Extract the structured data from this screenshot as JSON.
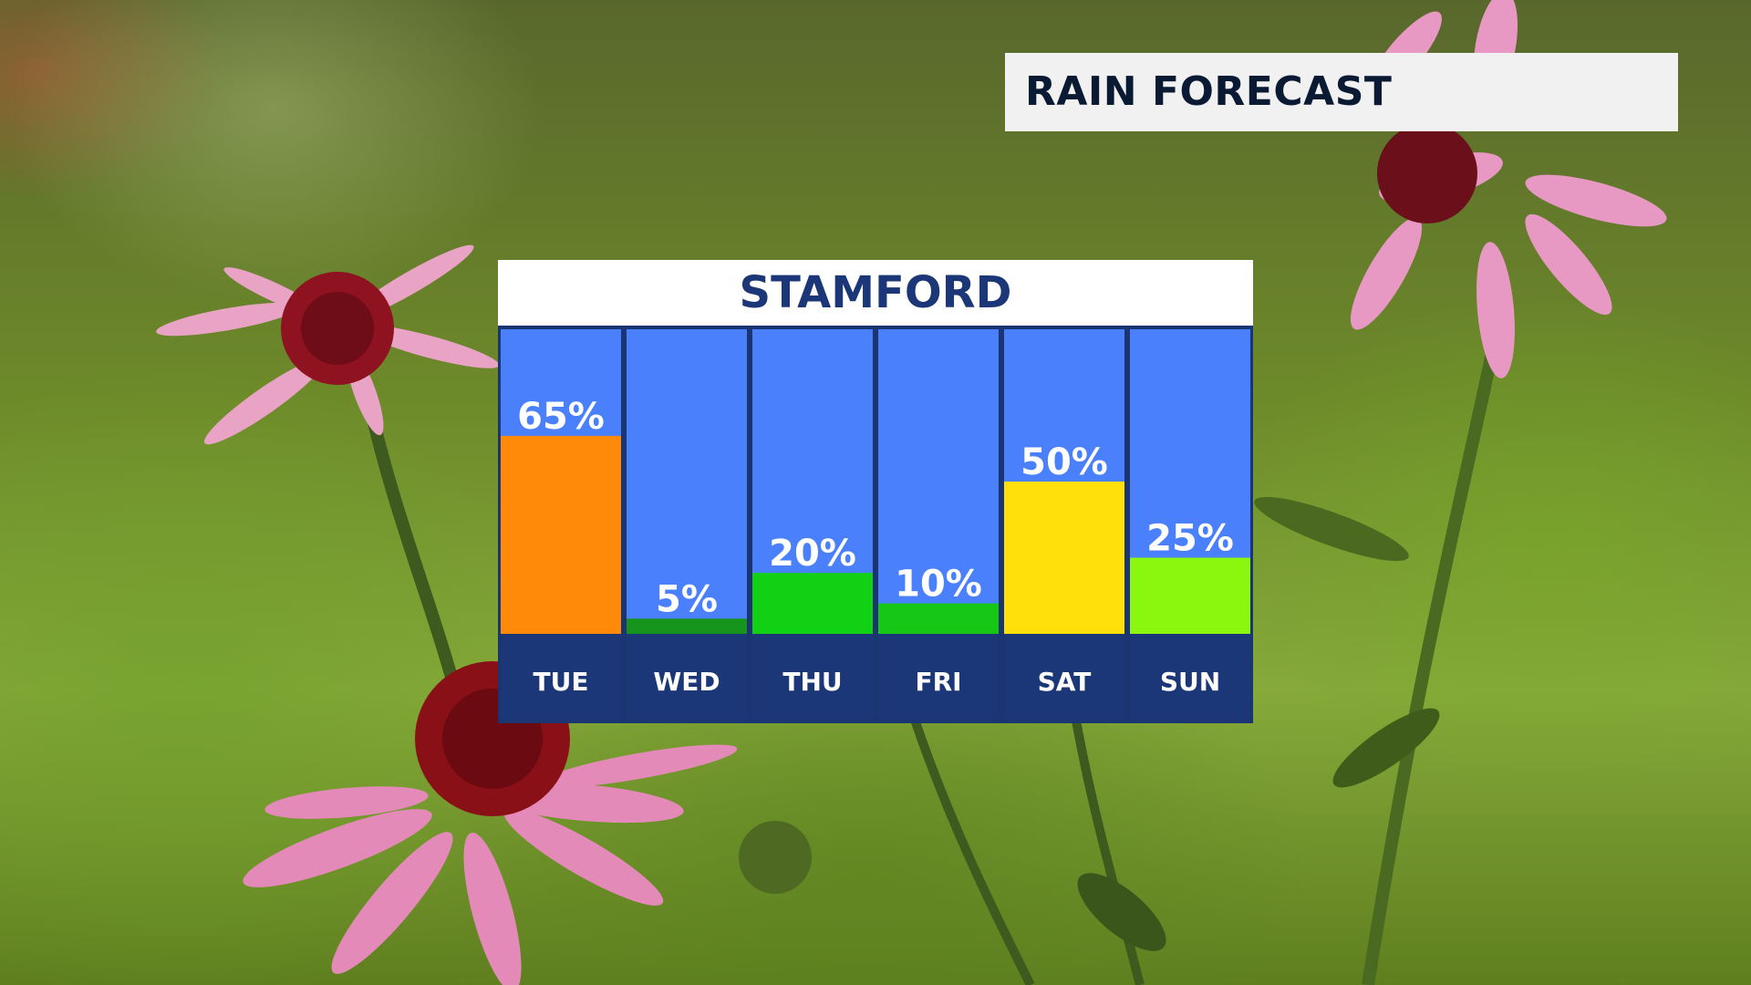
{
  "header": {
    "title": "RAIN FORECAST"
  },
  "chart_data": {
    "type": "bar",
    "title": "STAMFORD",
    "categories": [
      "TUE",
      "WED",
      "THU",
      "FRI",
      "SAT",
      "SUN"
    ],
    "values": [
      65,
      5,
      20,
      10,
      50,
      25
    ],
    "value_labels": [
      "65%",
      "5%",
      "20%",
      "10%",
      "50%",
      "25%"
    ],
    "bar_colors": [
      "#ff8a0a",
      "#16941c",
      "#12d114",
      "#16c716",
      "#ffe00a",
      "#8cf70e"
    ],
    "column_background": "#4a80fc",
    "label_background": "#1c3777",
    "text_color": "#ffffff",
    "unit": "%",
    "ylim": [
      0,
      100
    ],
    "grid": false,
    "legend": "none"
  }
}
